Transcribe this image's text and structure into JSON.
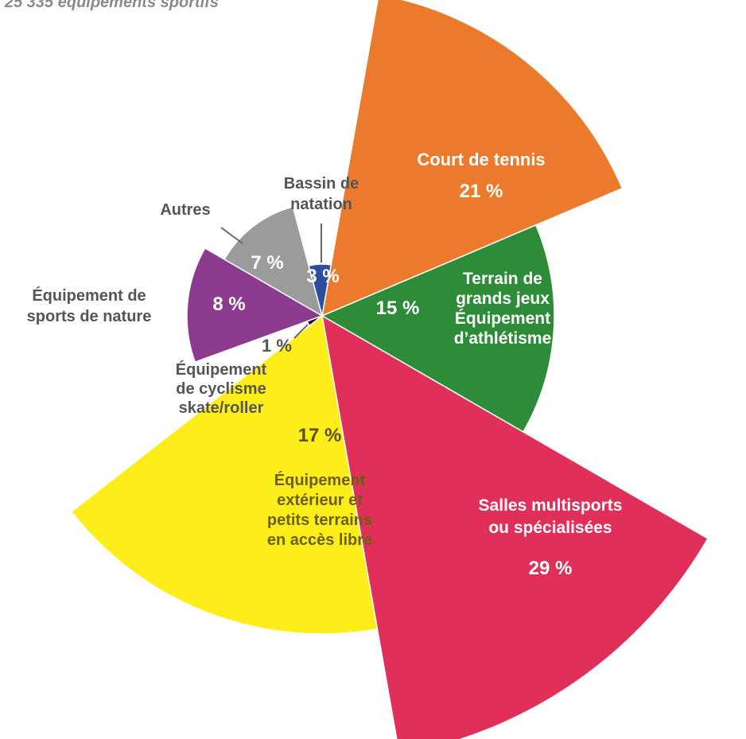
{
  "chart_data": {
    "type": "pie",
    "variant": "polar-area",
    "title": "25 335 équipements sportifs",
    "series": [
      {
        "name": "Court de tennis",
        "lines": [
          "Court de tennis"
        ],
        "value": 21,
        "label": "21 %",
        "color": "#ec7a2c"
      },
      {
        "name": "Terrain de grands jeux Équipement d’athlétisme",
        "lines": [
          "Terrain de",
          "grands jeux",
          "Équipement",
          "d’athlétisme"
        ],
        "value": 15,
        "label": "15 %",
        "color": "#2e8b37"
      },
      {
        "name": "Salles multisports ou spécialisées",
        "lines": [
          "Salles multisports",
          "ou spécialisées"
        ],
        "value": 29,
        "label": "29 %",
        "color": "#e0305a"
      },
      {
        "name": "Équipement extérieur et petits terrains en accès libre",
        "lines": [
          "Équipement",
          "extérieur et",
          "petits terrains",
          "en accès libre"
        ],
        "value": 17,
        "label": "17 %",
        "color": "#fded1a"
      },
      {
        "name": "Équipement de cyclisme skate/roller",
        "lines": [
          "Équipement",
          "de cyclisme",
          "skate/roller"
        ],
        "value": 1,
        "label": "1 %",
        "color": "#111111"
      },
      {
        "name": "Équipement de sports de nature",
        "lines": [
          "Équipement de",
          "sports de nature"
        ],
        "value": 8,
        "label": "8 %",
        "color": "#8c3b8e"
      },
      {
        "name": "Autres",
        "lines": [
          "Autres"
        ],
        "value": 7,
        "label": "7 %",
        "color": "#9b9b9b"
      },
      {
        "name": "Bassin de natation",
        "lines": [
          "Bassin de",
          "natation"
        ],
        "value": 3,
        "label": "3 %",
        "color": "#2c4e9c"
      }
    ]
  }
}
